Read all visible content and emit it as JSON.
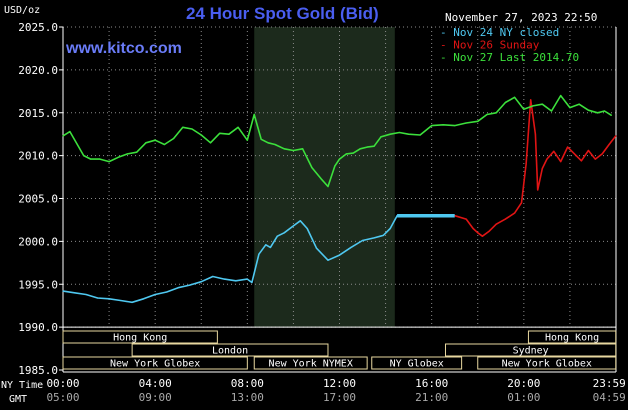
{
  "chart_data": {
    "type": "line",
    "title": "24 Hour Spot Gold (Bid)",
    "watermark": "www.kitco.com",
    "ylabel": "USD/oz",
    "timestamp": "November 27, 2023 22:50",
    "ylim": [
      1985.0,
      2025.0
    ],
    "y_ticks": [
      "2025.0",
      "2020.0",
      "2015.0",
      "2010.0",
      "2005.0",
      "2000.0",
      "1995.0",
      "1990.0",
      "1985.0"
    ],
    "xlim_hours": [
      0,
      24
    ],
    "x_ticks_ny": [
      "00:00",
      "04:00",
      "08:00",
      "12:00",
      "16:00",
      "20:00",
      "23:59"
    ],
    "x_ticks_gmt": [
      "05:00",
      "09:00",
      "13:00",
      "17:00",
      "21:00",
      "01:00",
      "04:59"
    ],
    "ny_time_label": "NY Time",
    "gmt_label": "GMT",
    "highlight_band_hours": [
      8.3,
      14.4
    ],
    "colors": {
      "nov24": "#4fc8f0",
      "nov26": "#e01414",
      "nov27": "#3ce03c",
      "title": "#4a5ef0",
      "watermark": "#6a7cf8",
      "band": "#1c2a1c",
      "grid": "#8a8a8a"
    },
    "legend": [
      {
        "label": "- Nov 24 NY closed",
        "color": "#4fc8f0"
      },
      {
        "label": "- Nov 26 Sunday",
        "color": "#e01414"
      },
      {
        "label": "- Nov 27 Last 2014.70",
        "color": "#3ce03c"
      }
    ],
    "series": [
      {
        "name": "Nov 24 NY closed",
        "x": [
          0,
          0.5,
          1,
          1.5,
          2,
          2.5,
          3,
          3.5,
          4,
          4.5,
          5,
          5.5,
          6,
          6.5,
          7,
          7.5,
          8,
          8.2,
          8.5,
          8.8,
          9,
          9.3,
          9.6,
          10,
          10.3,
          10.6,
          11,
          11.5,
          12,
          12.5,
          13,
          13.5,
          13.9,
          14.2,
          14.5,
          15,
          15.5,
          16,
          16.5,
          17
        ],
        "values": [
          1994.2,
          1994.0,
          1993.8,
          1993.4,
          1993.3,
          1993.1,
          1992.9,
          1993.3,
          1993.8,
          1994.1,
          1994.6,
          1994.9,
          1995.3,
          1995.9,
          1995.6,
          1995.4,
          1995.6,
          1995.2,
          1998.5,
          1999.6,
          1999.3,
          2000.6,
          2001.0,
          2001.8,
          2002.4,
          2001.5,
          1999.2,
          1997.8,
          1998.4,
          1999.3,
          2000.1,
          2000.4,
          2000.7,
          2001.5,
          2003.0,
          2003.0,
          2003.0,
          2003.0,
          2003.0,
          2003.0
        ]
      },
      {
        "name": "Nov 26 Sunday",
        "x": [
          17,
          17.5,
          17.8,
          18,
          18.2,
          18.5,
          18.8,
          19.2,
          19.6,
          19.9,
          20.1,
          20.3,
          20.5,
          20.6,
          20.8,
          21,
          21.3,
          21.6,
          21.9,
          22.2,
          22.5,
          22.8,
          23.1,
          23.4,
          23.7,
          23.99
        ],
        "values": [
          2003.0,
          2002.6,
          2001.5,
          2001.0,
          2000.6,
          2001.2,
          2002.0,
          2002.6,
          2003.3,
          2004.5,
          2009.0,
          2016.5,
          2012.5,
          2006.0,
          2008.5,
          2009.6,
          2010.5,
          2009.3,
          2011.0,
          2010.2,
          2009.4,
          2010.6,
          2009.6,
          2010.2,
          2011.3,
          2012.3
        ]
      },
      {
        "name": "Nov 27 Last 2014.70",
        "x": [
          0,
          0.3,
          0.6,
          0.9,
          1.2,
          1.6,
          2,
          2.4,
          2.8,
          3.2,
          3.6,
          4,
          4.4,
          4.8,
          5.2,
          5.6,
          6,
          6.4,
          6.8,
          7.2,
          7.6,
          8,
          8.3,
          8.6,
          8.9,
          9.2,
          9.6,
          10,
          10.4,
          10.8,
          11.2,
          11.5,
          11.8,
          12,
          12.3,
          12.6,
          12.9,
          13.2,
          13.5,
          13.8,
          14.2,
          14.6,
          15,
          15.5,
          16,
          16.5,
          17,
          17.5,
          18,
          18.4,
          18.8,
          19.2,
          19.6,
          20,
          20.4,
          20.8,
          21.2,
          21.6,
          22,
          22.4,
          22.8,
          23.2,
          23.5,
          23.8
        ],
        "values": [
          2012.3,
          2012.8,
          2011.4,
          2010.0,
          2009.6,
          2009.6,
          2009.3,
          2009.8,
          2010.2,
          2010.4,
          2011.5,
          2011.8,
          2011.3,
          2012.0,
          2013.3,
          2013.1,
          2012.4,
          2011.5,
          2012.6,
          2012.5,
          2013.3,
          2011.8,
          2014.8,
          2011.9,
          2011.5,
          2011.3,
          2010.8,
          2010.6,
          2010.8,
          2008.6,
          2007.3,
          2006.4,
          2008.8,
          2009.6,
          2010.2,
          2010.3,
          2010.8,
          2011.0,
          2011.1,
          2012.2,
          2012.5,
          2012.7,
          2012.5,
          2012.4,
          2013.5,
          2013.6,
          2013.5,
          2013.8,
          2014.0,
          2014.8,
          2015.0,
          2016.2,
          2016.8,
          2015.4,
          2015.8,
          2016.0,
          2015.2,
          2017.0,
          2015.6,
          2016.0,
          2015.3,
          2015.0,
          2015.2,
          2014.7
        ]
      }
    ],
    "session_rows": [
      [
        {
          "label": "Hong Kong",
          "start": 0,
          "end": 6.7
        },
        {
          "label": "Hong Kong",
          "start": 20.2,
          "end": 23.99
        }
      ],
      [
        {
          "label": "London",
          "start": 3.0,
          "end": 11.5
        },
        {
          "label": "Sydney",
          "start": 16.6,
          "end": 23.99
        }
      ],
      [
        {
          "label": "New York Globex",
          "start": 0,
          "end": 8.0
        },
        {
          "label": "New York NYMEX",
          "start": 8.3,
          "end": 13.2
        },
        {
          "label": "NY Globex",
          "start": 13.4,
          "end": 17.3
        },
        {
          "label": "New York Globex",
          "start": 18.0,
          "end": 23.99
        }
      ]
    ]
  }
}
